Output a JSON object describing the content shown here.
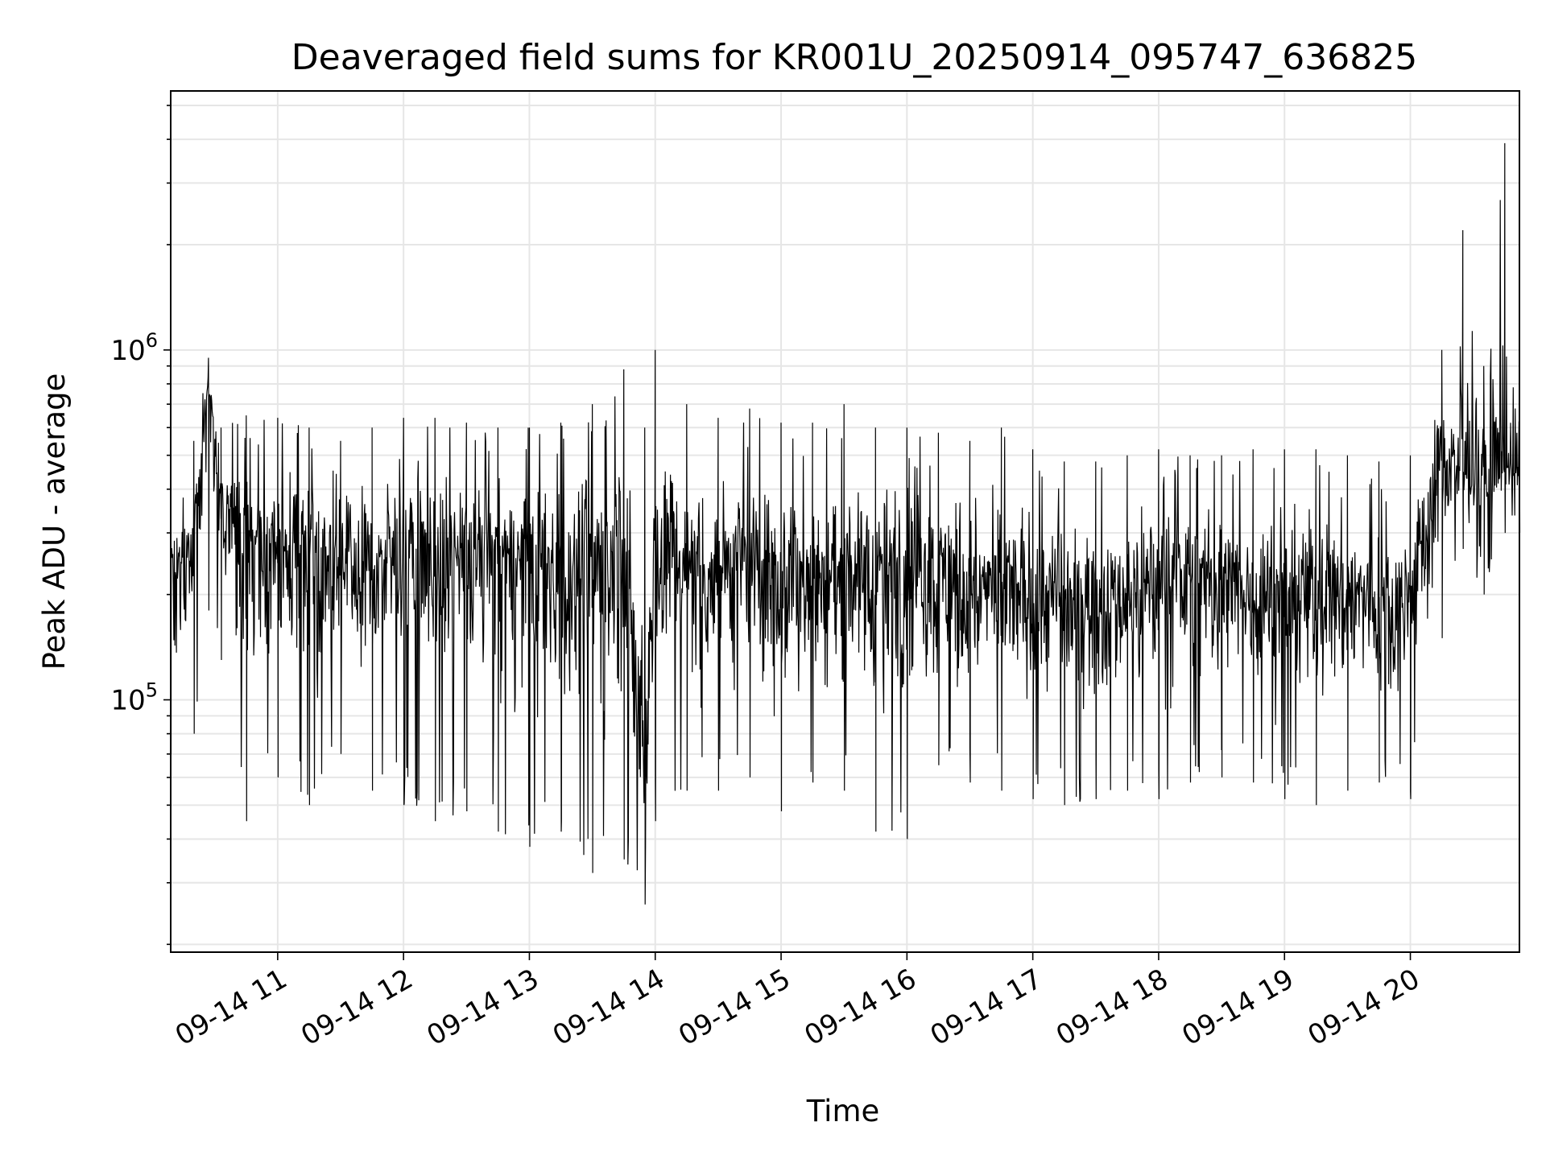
{
  "chart_data": {
    "type": "line",
    "title": "Deaveraged field sums for KR001U_20250914_095747_636825",
    "xlabel": "Time",
    "ylabel": "Peak ADU - average",
    "yscale": "log",
    "ylim": [
      19000,
      5500000
    ],
    "xlim": [
      "09-14 10:09",
      "09-14 20:52"
    ],
    "grid": true,
    "y_ticks": [
      {
        "value": 100000,
        "base": "10",
        "exp": "5"
      },
      {
        "value": 1000000,
        "base": "10",
        "exp": "6"
      }
    ],
    "x_ticks": [
      "09-14 11",
      "09-14 12",
      "09-14 13",
      "09-14 14",
      "09-14 15",
      "09-14 16",
      "09-14 17",
      "09-14 18",
      "09-14 19",
      "09-14 20"
    ],
    "line_color": "#000000",
    "series": [
      {
        "x": [
          "09-14 10:09",
          "09-14 10:20",
          "09-14 10:27",
          "09-14 10:33",
          "09-14 10:45",
          "09-14 11:00",
          "09-14 11:15",
          "09-14 11:30",
          "09-14 11:45",
          "09-14 12:00",
          "09-14 12:15",
          "09-14 12:30",
          "09-14 12:45",
          "09-14 13:00",
          "09-14 13:15",
          "09-14 13:30",
          "09-14 13:45",
          "09-14 13:55",
          "09-14 14:00",
          "09-14 14:15",
          "09-14 14:30",
          "09-14 14:45",
          "09-14 15:00",
          "09-14 15:15",
          "09-14 15:30",
          "09-14 15:45",
          "09-14 16:00",
          "09-14 16:15",
          "09-14 16:30",
          "09-14 16:45",
          "09-14 17:00",
          "09-14 17:15",
          "09-14 17:30",
          "09-14 17:45",
          "09-14 18:00",
          "09-14 18:15",
          "09-14 18:30",
          "09-14 18:45",
          "09-14 19:00",
          "09-14 19:15",
          "09-14 19:30",
          "09-14 19:45",
          "09-14 20:00",
          "09-14 20:15",
          "09-14 20:25",
          "09-14 20:35",
          "09-14 20:45",
          "09-14 20:52"
        ],
        "y": [
          250000,
          280000,
          850000,
          350000,
          280000,
          270000,
          280000,
          260000,
          240000,
          270000,
          270000,
          260000,
          250000,
          250000,
          230000,
          240000,
          300000,
          50000,
          280000,
          250000,
          230000,
          240000,
          230000,
          220000,
          240000,
          230000,
          240000,
          220000,
          210000,
          200000,
          200000,
          190000,
          190000,
          200000,
          220000,
          220000,
          210000,
          200000,
          200000,
          210000,
          200000,
          190000,
          200000,
          500000,
          450000,
          450000,
          480000,
          500000
        ],
        "upper": [
          320000,
          550000,
          950000,
          600000,
          650000,
          640000,
          600000,
          550000,
          600000,
          640000,
          640000,
          620000,
          600000,
          600000,
          620000,
          700000,
          880000,
          600000,
          1000000,
          700000,
          640000,
          680000,
          620000,
          620000,
          700000,
          600000,
          600000,
          580000,
          550000,
          600000,
          520000,
          480000,
          480000,
          500000,
          520000,
          500000,
          500000,
          520000,
          520000,
          520000,
          500000,
          480000,
          500000,
          1000000,
          2200000,
          900000,
          3900000,
          700000
        ],
        "lower": [
          70000,
          80000,
          180000,
          130000,
          45000,
          60000,
          50000,
          70000,
          55000,
          50000,
          45000,
          48000,
          42000,
          38000,
          42000,
          32000,
          35000,
          26000,
          45000,
          55000,
          55000,
          60000,
          48000,
          58000,
          55000,
          42000,
          40000,
          65000,
          58000,
          55000,
          52000,
          50000,
          52000,
          55000,
          52000,
          58000,
          60000,
          58000,
          52000,
          50000,
          55000,
          58000,
          52000,
          150000,
          270000,
          200000,
          300000,
          300000
        ]
      }
    ]
  }
}
